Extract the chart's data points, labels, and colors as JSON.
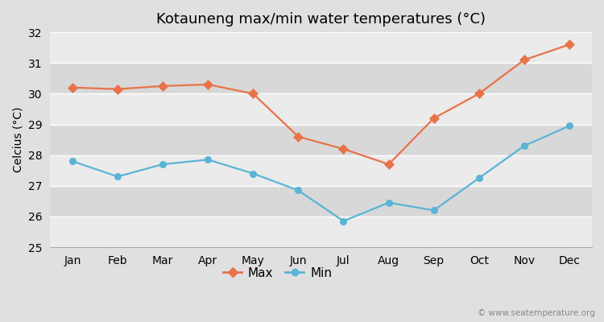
{
  "title": "Kotauneng max/min water temperatures (°C)",
  "ylabel": "Celcius (°C)",
  "months": [
    "Jan",
    "Feb",
    "Mar",
    "Apr",
    "May",
    "Jun",
    "Jul",
    "Aug",
    "Sep",
    "Oct",
    "Nov",
    "Dec"
  ],
  "max_temps": [
    30.2,
    30.15,
    30.25,
    30.3,
    30.0,
    28.6,
    28.2,
    27.7,
    29.2,
    30.0,
    31.1,
    31.6
  ],
  "min_temps": [
    27.8,
    27.3,
    27.7,
    27.85,
    27.4,
    26.85,
    25.85,
    26.45,
    26.2,
    27.25,
    28.3,
    28.95
  ],
  "max_color": "#e8724a",
  "min_color": "#5ab4d6",
  "outer_bg": "#e0e0e0",
  "plot_bg_light": "#ebebeb",
  "plot_bg_dark": "#d8d8d8",
  "grid_color": "#ffffff",
  "ylim": [
    25,
    32
  ],
  "yticks": [
    25,
    26,
    27,
    28,
    29,
    30,
    31,
    32
  ],
  "legend_labels": [
    "Max",
    "Min"
  ],
  "watermark": "© www.seatemperature.org",
  "title_fontsize": 13,
  "axis_fontsize": 10,
  "tick_fontsize": 10,
  "legend_fontsize": 11
}
